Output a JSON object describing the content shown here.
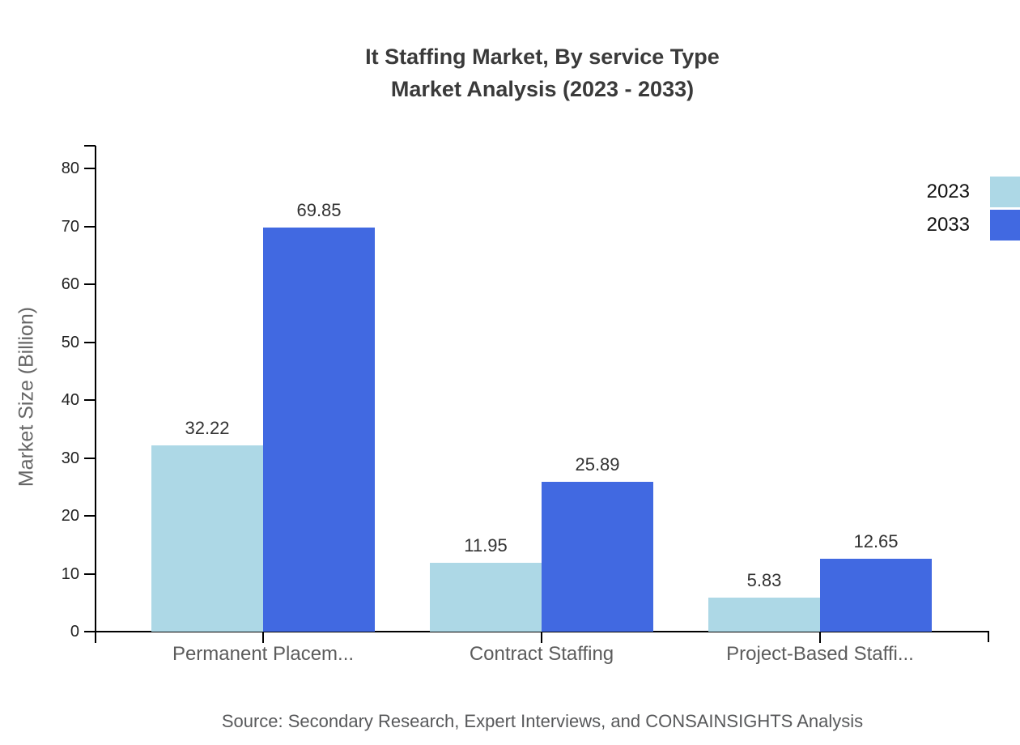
{
  "chart_data": {
    "type": "bar",
    "title_line1": "It Staffing Market, By service Type",
    "title_line2": "Market Analysis (2023 - 2033)",
    "ylabel": "Market Size (Billion)",
    "categories": [
      "Permanent Placem...",
      "Contract Staffing",
      "Project-Based Staffi..."
    ],
    "series": [
      {
        "name": "2023",
        "color": "#add8e6",
        "values": [
          32.22,
          11.95,
          5.83
        ]
      },
      {
        "name": "2033",
        "color": "#4169e1",
        "values": [
          69.85,
          25.89,
          12.65
        ]
      }
    ],
    "value_labels": [
      "32.22",
      "69.85",
      "11.95",
      "25.89",
      "5.83",
      "12.65"
    ],
    "ylim": [
      0,
      80
    ],
    "ytick_step": 10,
    "yticks": [
      "0",
      "10",
      "20",
      "30",
      "40",
      "50",
      "60",
      "70",
      "80"
    ],
    "grid": false,
    "legend_position": "right-edge",
    "source": "Source: Secondary Research, Expert Interviews, and CONSAINSIGHTS Analysis"
  }
}
